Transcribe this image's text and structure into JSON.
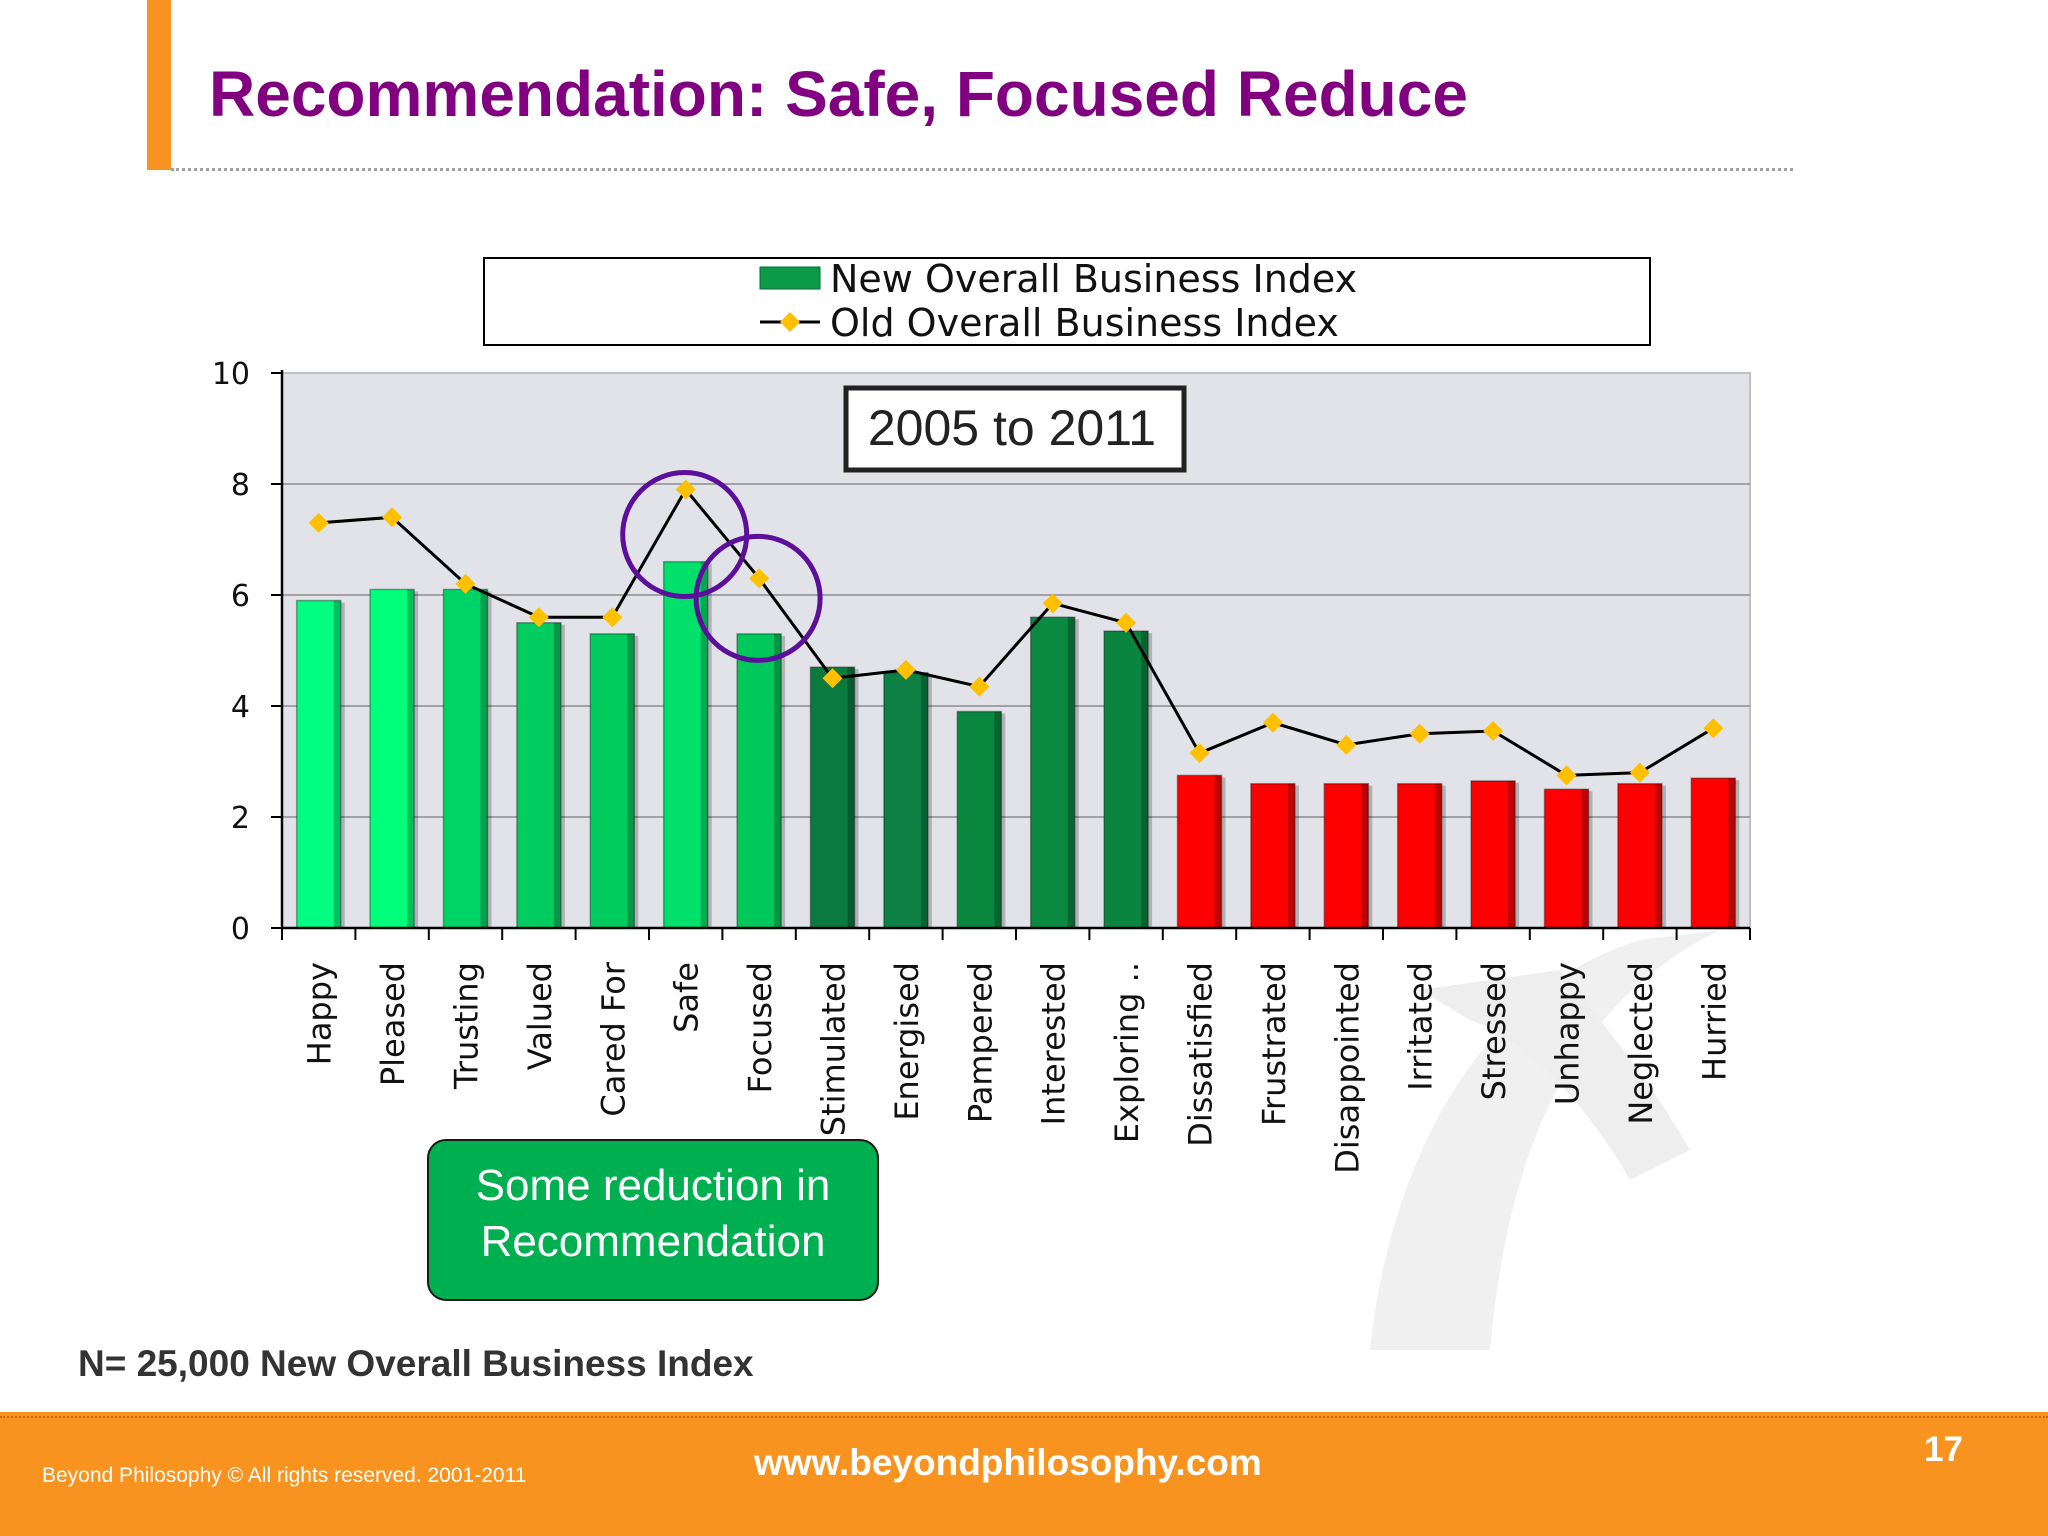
{
  "slide": {
    "title": "Recommendation: Safe, Focused Reduce",
    "sample_note": "N= 25,000 New Overall Business Index",
    "period_box": "2005 to 2011",
    "callout_line1": "Some reduction in",
    "callout_line2": "Recommendation",
    "colors": {
      "title": "#800080",
      "accent": "#f7931e",
      "callout": "#00b050",
      "circle": "#5b0f9a"
    }
  },
  "footer": {
    "copyright": "Beyond Philosophy © All rights reserved. 2001-2011",
    "url": "www.beyondphilosophy.com",
    "page_number": "17"
  },
  "chart_data": {
    "type": "bar",
    "title": "",
    "xlabel": "",
    "ylabel": "",
    "ylim": [
      0,
      10
    ],
    "yticks": [
      0,
      2,
      4,
      6,
      8,
      10
    ],
    "grid": true,
    "legend_position": "top",
    "categories": [
      "Happy",
      "Pleased",
      "Trusting",
      "Valued",
      "Cared For",
      "Safe",
      "Focused",
      "Stimulated",
      "Energised",
      "Pampered",
      "Interested",
      "Exploring ..",
      "Dissatisfied",
      "Frustrated",
      "Disappointed",
      "Irritated",
      "Stressed",
      "Unhappy",
      "Neglected",
      "Hurried"
    ],
    "series": [
      {
        "name": "New Overall Business Index",
        "kind": "bar",
        "values": [
          5.9,
          6.1,
          6.1,
          5.5,
          5.3,
          6.6,
          5.3,
          4.7,
          4.6,
          3.9,
          5.6,
          5.35,
          2.75,
          2.6,
          2.6,
          2.6,
          2.65,
          2.5,
          2.6,
          2.7
        ],
        "colors": [
          "#00ff80",
          "#00ff7a",
          "#00d466",
          "#00cc60",
          "#00cc5e",
          "#00e06a",
          "#00c85a",
          "#0b7a3e",
          "#0d8043",
          "#0a873f",
          "#0a8a40",
          "#0a8540",
          "#ff0000",
          "#ff0000",
          "#ff0000",
          "#ff0000",
          "#ff0000",
          "#ff0000",
          "#ff0000",
          "#ff0000"
        ]
      },
      {
        "name": "Old Overall Business Index",
        "kind": "line",
        "values": [
          7.3,
          7.4,
          6.2,
          5.6,
          5.6,
          7.9,
          6.3,
          4.5,
          4.65,
          4.35,
          5.85,
          5.5,
          3.15,
          3.7,
          3.3,
          3.5,
          3.55,
          2.75,
          2.8,
          3.6
        ],
        "color": "#000000",
        "marker_color": "#ffc000"
      }
    ],
    "highlighted_categories": [
      "Safe",
      "Focused"
    ]
  }
}
